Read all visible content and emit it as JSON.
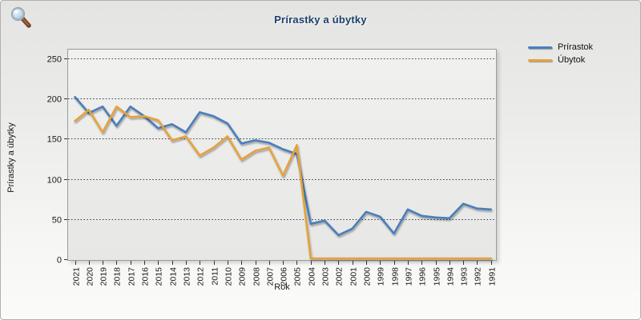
{
  "header": {
    "title": "Prírastky a úbytky",
    "title_color": "#1c3f6e"
  },
  "toolbar": {
    "zoom_icon": "magnifier"
  },
  "chart_data": {
    "type": "line",
    "title": "Prírastky a úbytky",
    "xlabel": "Rok",
    "ylabel": "Prírastky a úbytky",
    "ylim": [
      0,
      250
    ],
    "yticks": [
      0,
      50,
      100,
      150,
      200,
      250
    ],
    "grid": "horizontal-dotted",
    "legend_position": "top-right",
    "x_label_rotation": -90,
    "categories": [
      "2021",
      "2020",
      "2019",
      "2018",
      "2017",
      "2016",
      "2015",
      "2014",
      "2013",
      "2012",
      "2011",
      "2010",
      "2009",
      "2008",
      "2007",
      "2006",
      "2005",
      "2004",
      "2003",
      "2002",
      "2001",
      "2000",
      "1999",
      "1998",
      "1997",
      "1996",
      "1995",
      "1994",
      "1993",
      "1992",
      "1991"
    ],
    "series": [
      {
        "name": "Prírastok",
        "color": "#4a7ebb",
        "values": [
          202,
          182,
          190,
          166,
          190,
          178,
          163,
          168,
          158,
          183,
          178,
          169,
          144,
          148,
          145,
          137,
          131,
          44,
          48,
          30,
          38,
          59,
          53,
          32,
          62,
          54,
          52,
          51,
          69,
          63,
          62
        ]
      },
      {
        "name": "Úbytok",
        "color": "#e5a23c",
        "values": [
          172,
          186,
          158,
          190,
          177,
          178,
          173,
          148,
          153,
          129,
          139,
          153,
          124,
          135,
          139,
          104,
          142,
          1,
          1,
          1,
          1,
          1,
          1,
          1,
          1,
          1,
          1,
          1,
          1,
          1,
          1
        ]
      }
    ]
  }
}
